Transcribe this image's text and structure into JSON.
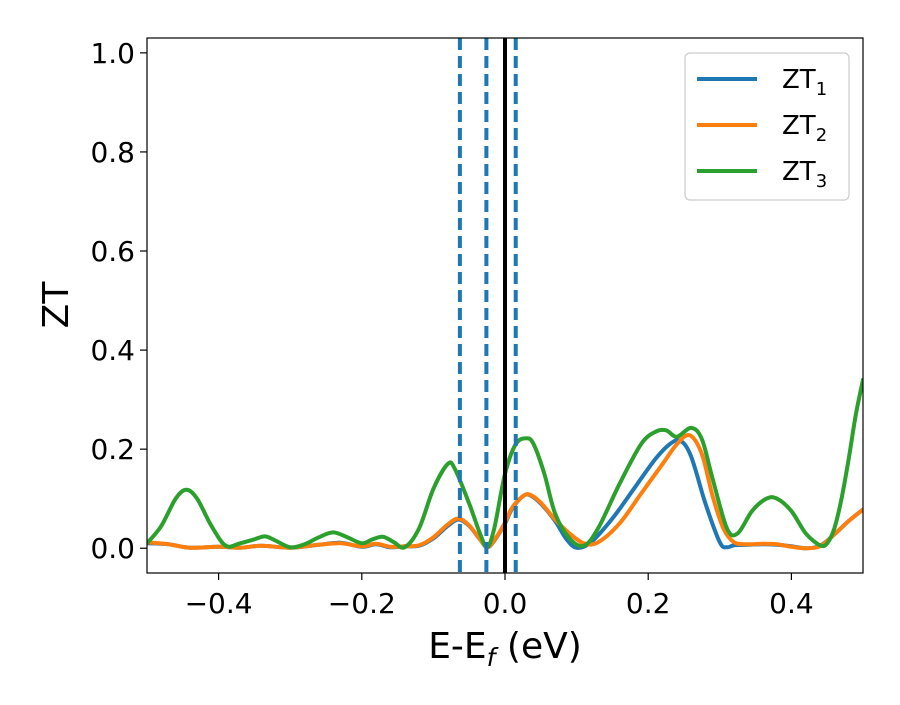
{
  "chart_data": {
    "type": "line",
    "xlabel": "E-E_f (eV)",
    "xlabel_main": "E-E",
    "xlabel_sub": "f",
    "xlabel_unit": " (eV)",
    "ylabel": "ZT",
    "xlim": [
      -0.5,
      0.5
    ],
    "ylim": [
      -0.05,
      1.03
    ],
    "grid": false,
    "legend_position": "top-right",
    "xticks": [
      -0.4,
      -0.2,
      0.0,
      0.2,
      0.4
    ],
    "xtick_labels": [
      "−0.4",
      "−0.2",
      "0.0",
      "0.2",
      "0.4"
    ],
    "yticks": [
      0.0,
      0.2,
      0.4,
      0.6,
      0.8,
      1.0
    ],
    "ytick_labels": [
      "0.0",
      "0.2",
      "0.4",
      "0.6",
      "0.8",
      "1.0"
    ],
    "vlines": [
      {
        "x": 0.0,
        "style": "solid",
        "color": "#000000"
      },
      {
        "x": -0.063,
        "style": "dashed",
        "color": "#1f77b4"
      },
      {
        "x": -0.026,
        "style": "dashed",
        "color": "#1f77b4"
      },
      {
        "x": 0.015,
        "style": "dashed",
        "color": "#1f77b4"
      }
    ],
    "series": [
      {
        "name": "ZT_1",
        "label_main": "ZT",
        "label_sub": "1",
        "color": "#1f77b4",
        "points": [
          [
            -0.5,
            0.01
          ],
          [
            -0.47,
            0.008
          ],
          [
            -0.44,
            0.001
          ],
          [
            -0.4,
            0.003
          ],
          [
            -0.37,
            0.001
          ],
          [
            -0.34,
            0.005
          ],
          [
            -0.3,
            0.001
          ],
          [
            -0.26,
            0.007
          ],
          [
            -0.23,
            0.011
          ],
          [
            -0.2,
            0.003
          ],
          [
            -0.18,
            0.008
          ],
          [
            -0.16,
            0.002
          ],
          [
            -0.14,
            0.004
          ],
          [
            -0.12,
            0.005
          ],
          [
            -0.1,
            0.02
          ],
          [
            -0.08,
            0.045
          ],
          [
            -0.065,
            0.058
          ],
          [
            -0.05,
            0.045
          ],
          [
            -0.035,
            0.018
          ],
          [
            -0.025,
            0.002
          ],
          [
            -0.015,
            0.015
          ],
          [
            0.0,
            0.05
          ],
          [
            0.01,
            0.08
          ],
          [
            0.025,
            0.105
          ],
          [
            0.035,
            0.107
          ],
          [
            0.05,
            0.09
          ],
          [
            0.07,
            0.055
          ],
          [
            0.085,
            0.02
          ],
          [
            0.1,
            0.001
          ],
          [
            0.12,
            0.012
          ],
          [
            0.15,
            0.06
          ],
          [
            0.18,
            0.12
          ],
          [
            0.21,
            0.18
          ],
          [
            0.23,
            0.21
          ],
          [
            0.245,
            0.217
          ],
          [
            0.26,
            0.185
          ],
          [
            0.28,
            0.09
          ],
          [
            0.3,
            0.012
          ],
          [
            0.31,
            0.002
          ],
          [
            0.32,
            0.006
          ],
          [
            0.34,
            0.007
          ],
          [
            0.36,
            0.008
          ],
          [
            0.38,
            0.007
          ],
          [
            0.4,
            0.004
          ],
          [
            0.42,
            0.0
          ],
          [
            0.44,
            0.005
          ],
          [
            0.46,
            0.028
          ],
          [
            0.48,
            0.055
          ],
          [
            0.5,
            0.078
          ]
        ]
      },
      {
        "name": "ZT_2",
        "label_main": "ZT",
        "label_sub": "2",
        "color": "#ff7f0e",
        "points": [
          [
            -0.5,
            0.012
          ],
          [
            -0.47,
            0.008
          ],
          [
            -0.44,
            0.001
          ],
          [
            -0.4,
            0.003
          ],
          [
            -0.37,
            0.001
          ],
          [
            -0.34,
            0.005
          ],
          [
            -0.3,
            0.001
          ],
          [
            -0.26,
            0.007
          ],
          [
            -0.23,
            0.01
          ],
          [
            -0.2,
            0.004
          ],
          [
            -0.18,
            0.009
          ],
          [
            -0.16,
            0.003
          ],
          [
            -0.14,
            0.004
          ],
          [
            -0.12,
            0.006
          ],
          [
            -0.1,
            0.022
          ],
          [
            -0.08,
            0.048
          ],
          [
            -0.065,
            0.06
          ],
          [
            -0.05,
            0.046
          ],
          [
            -0.035,
            0.018
          ],
          [
            -0.025,
            0.002
          ],
          [
            -0.015,
            0.016
          ],
          [
            0.0,
            0.052
          ],
          [
            0.01,
            0.082
          ],
          [
            0.025,
            0.105
          ],
          [
            0.035,
            0.108
          ],
          [
            0.05,
            0.092
          ],
          [
            0.07,
            0.058
          ],
          [
            0.09,
            0.03
          ],
          [
            0.11,
            0.01
          ],
          [
            0.13,
            0.012
          ],
          [
            0.16,
            0.05
          ],
          [
            0.19,
            0.11
          ],
          [
            0.22,
            0.17
          ],
          [
            0.24,
            0.21
          ],
          [
            0.258,
            0.228
          ],
          [
            0.275,
            0.19
          ],
          [
            0.29,
            0.105
          ],
          [
            0.305,
            0.04
          ],
          [
            0.32,
            0.012
          ],
          [
            0.34,
            0.008
          ],
          [
            0.36,
            0.009
          ],
          [
            0.38,
            0.008
          ],
          [
            0.4,
            0.003
          ],
          [
            0.42,
            0.0
          ],
          [
            0.44,
            0.004
          ],
          [
            0.46,
            0.028
          ],
          [
            0.48,
            0.055
          ],
          [
            0.5,
            0.078
          ]
        ]
      },
      {
        "name": "ZT_3",
        "label_main": "ZT",
        "label_sub": "3",
        "color": "#2ca02c",
        "points": [
          [
            -0.5,
            0.01
          ],
          [
            -0.48,
            0.045
          ],
          [
            -0.46,
            0.1
          ],
          [
            -0.445,
            0.118
          ],
          [
            -0.43,
            0.1
          ],
          [
            -0.41,
            0.045
          ],
          [
            -0.39,
            0.005
          ],
          [
            -0.37,
            0.01
          ],
          [
            -0.35,
            0.018
          ],
          [
            -0.335,
            0.024
          ],
          [
            -0.32,
            0.015
          ],
          [
            -0.3,
            0.002
          ],
          [
            -0.28,
            0.008
          ],
          [
            -0.26,
            0.022
          ],
          [
            -0.24,
            0.032
          ],
          [
            -0.22,
            0.022
          ],
          [
            -0.2,
            0.01
          ],
          [
            -0.185,
            0.018
          ],
          [
            -0.17,
            0.023
          ],
          [
            -0.155,
            0.012
          ],
          [
            -0.14,
            0.002
          ],
          [
            -0.12,
            0.04
          ],
          [
            -0.1,
            0.12
          ],
          [
            -0.08,
            0.17
          ],
          [
            -0.07,
            0.16
          ],
          [
            -0.05,
            0.09
          ],
          [
            -0.035,
            0.03
          ],
          [
            -0.025,
            0.002
          ],
          [
            -0.015,
            0.04
          ],
          [
            0.0,
            0.15
          ],
          [
            0.015,
            0.21
          ],
          [
            0.03,
            0.222
          ],
          [
            0.04,
            0.21
          ],
          [
            0.055,
            0.15
          ],
          [
            0.07,
            0.07
          ],
          [
            0.09,
            0.02
          ],
          [
            0.11,
            0.005
          ],
          [
            0.13,
            0.04
          ],
          [
            0.16,
            0.13
          ],
          [
            0.19,
            0.21
          ],
          [
            0.21,
            0.235
          ],
          [
            0.225,
            0.238
          ],
          [
            0.24,
            0.225
          ],
          [
            0.26,
            0.243
          ],
          [
            0.275,
            0.22
          ],
          [
            0.29,
            0.14
          ],
          [
            0.31,
            0.04
          ],
          [
            0.325,
            0.03
          ],
          [
            0.345,
            0.075
          ],
          [
            0.365,
            0.1
          ],
          [
            0.38,
            0.1
          ],
          [
            0.4,
            0.075
          ],
          [
            0.42,
            0.03
          ],
          [
            0.44,
            0.006
          ],
          [
            0.45,
            0.01
          ],
          [
            0.46,
            0.04
          ],
          [
            0.47,
            0.1
          ],
          [
            0.48,
            0.18
          ],
          [
            0.49,
            0.27
          ],
          [
            0.5,
            0.34
          ]
        ]
      }
    ]
  }
}
